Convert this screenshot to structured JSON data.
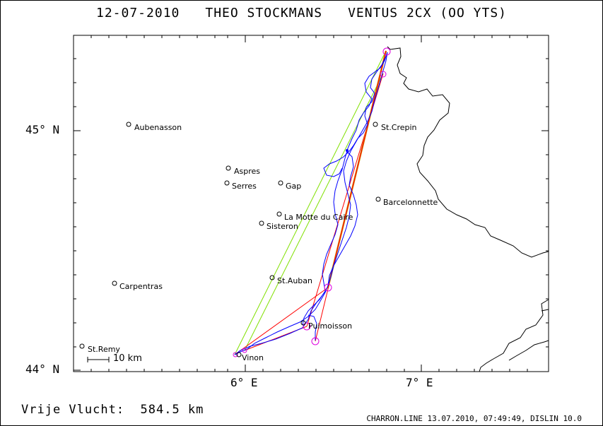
{
  "title": {
    "date": "12-07-2010",
    "pilot": "THEO STOCKMANS",
    "glider": "VENTUS 2CX (OO YTS)"
  },
  "axes": {
    "lat_labels": [
      "45° N",
      "44° N"
    ],
    "lon_labels": [
      "6° E",
      "7° E"
    ]
  },
  "places": [
    {
      "id": "aubenasson",
      "name": "Aubenasson"
    },
    {
      "id": "aspres",
      "name": "Aspres"
    },
    {
      "id": "serres",
      "name": "Serres"
    },
    {
      "id": "gap",
      "name": "Gap"
    },
    {
      "id": "la-motte",
      "name": "La Motte du Caire"
    },
    {
      "id": "sisteron",
      "name": "Sisteron"
    },
    {
      "id": "st-crepin",
      "name": "St.Crepin"
    },
    {
      "id": "barcelonnette",
      "name": "Barcelonnette"
    },
    {
      "id": "st-auban",
      "name": "St.Auban"
    },
    {
      "id": "carpentras",
      "name": "Carpentras"
    },
    {
      "id": "puimoisson",
      "name": "Puimoisson"
    },
    {
      "id": "st-remy",
      "name": "St.Remy"
    },
    {
      "id": "vinon",
      "name": "Vinon"
    }
  ],
  "scale": {
    "label": "10 km"
  },
  "footer": {
    "distance": "Vrije Vlucht:  584.5 km",
    "credits": "CHARRON.LINE 13.07.2010, 07:49:49, DISLIN 10.0"
  },
  "colors": {
    "track": "#0000ff",
    "task_red": "#ff0000",
    "task_green": "#80e000",
    "turnpoint": "#e000e0",
    "border": "#000000",
    "main_leg": "#c8a000"
  }
}
